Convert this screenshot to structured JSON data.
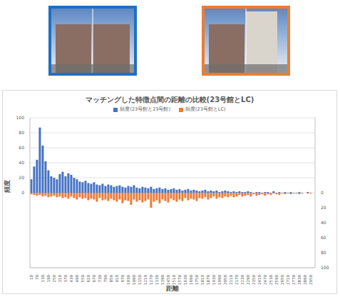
{
  "chart_data": {
    "type": "bar",
    "title": "マッチングした特徴点間の距離の比較(23号館とLC)",
    "x_label": "距離",
    "y_label": "頻度",
    "categories": [
      "10",
      null,
      "70",
      null,
      "130",
      null,
      "190",
      null,
      "250",
      null,
      "310",
      null,
      "370",
      null,
      "430",
      null,
      "490",
      null,
      "550",
      null,
      "610",
      null,
      "670",
      null,
      "730",
      null,
      "790",
      null,
      "850",
      null,
      "910",
      null,
      "970",
      null,
      "1030",
      null,
      "1090",
      null,
      "1150",
      null,
      "1210",
      null,
      "1270",
      null,
      "1330",
      null,
      "1390",
      null,
      "1450",
      null,
      "1510",
      null,
      "1570",
      null,
      "1630",
      null,
      "1690",
      null,
      "1750",
      null,
      "1810",
      null,
      "1870",
      null,
      "1930",
      null,
      "1990",
      null,
      "2050",
      null,
      "2110",
      null,
      "2170",
      null,
      "2230",
      null,
      "2290",
      null,
      "2350",
      null,
      "2410",
      null,
      "2470",
      null,
      "2530",
      null,
      "2590",
      null,
      "2650",
      null,
      "2710",
      null,
      "2770",
      null,
      "2830",
      null,
      "2890",
      null,
      "2950",
      null
    ],
    "series": [
      {
        "name": "頻度(23号館と23号館)",
        "color": "#4472c4",
        "values": [
          18,
          35,
          44,
          87,
          63,
          42,
          30,
          22,
          20,
          18,
          25,
          28,
          22,
          26,
          24,
          20,
          18,
          15,
          14,
          16,
          13,
          12,
          14,
          11,
          10,
          12,
          9,
          11,
          10,
          8,
          9,
          10,
          8,
          7,
          9,
          8,
          10,
          7,
          6,
          8,
          7,
          6,
          8,
          5,
          6,
          7,
          5,
          6,
          4,
          5,
          6,
          4,
          5,
          3,
          4,
          5,
          3,
          4,
          3,
          2,
          3,
          4,
          2,
          3,
          2,
          3,
          1,
          2,
          3,
          2,
          1,
          2,
          1,
          2,
          1,
          1,
          2,
          1,
          0,
          1,
          1,
          0,
          1,
          1,
          0,
          2,
          0,
          1,
          0,
          1,
          0,
          1,
          0,
          0,
          1,
          0,
          0,
          1,
          0,
          0
        ]
      },
      {
        "name": "頻度(23号館とLC)",
        "color": "#ed7d31",
        "axis": "y2",
        "values": [
          2,
          3,
          4,
          3,
          5,
          4,
          6,
          5,
          4,
          6,
          5,
          7,
          6,
          8,
          5,
          7,
          9,
          6,
          8,
          7,
          10,
          8,
          9,
          12,
          7,
          10,
          9,
          11,
          8,
          10,
          12,
          9,
          14,
          10,
          11,
          16,
          9,
          12,
          10,
          13,
          11,
          9,
          20,
          12,
          10,
          14,
          9,
          11,
          13,
          8,
          10,
          12,
          9,
          11,
          7,
          10,
          8,
          9,
          11,
          7,
          8,
          6,
          9,
          7,
          5,
          8,
          6,
          7,
          5,
          6,
          4,
          6,
          5,
          3,
          5,
          4,
          3,
          5,
          2,
          4,
          3,
          2,
          4,
          2,
          3,
          1,
          2,
          3,
          1,
          2,
          1,
          2,
          1,
          1,
          2,
          1,
          0,
          1,
          1,
          0
        ]
      }
    ],
    "ylim": [
      -100,
      100
    ],
    "yticks": [
      0,
      20,
      40,
      60,
      80,
      100
    ],
    "y2lim": [
      100,
      -100
    ],
    "y2ticks": [
      0,
      20,
      40,
      60,
      80,
      100
    ],
    "grid": true,
    "legend": "top"
  }
}
